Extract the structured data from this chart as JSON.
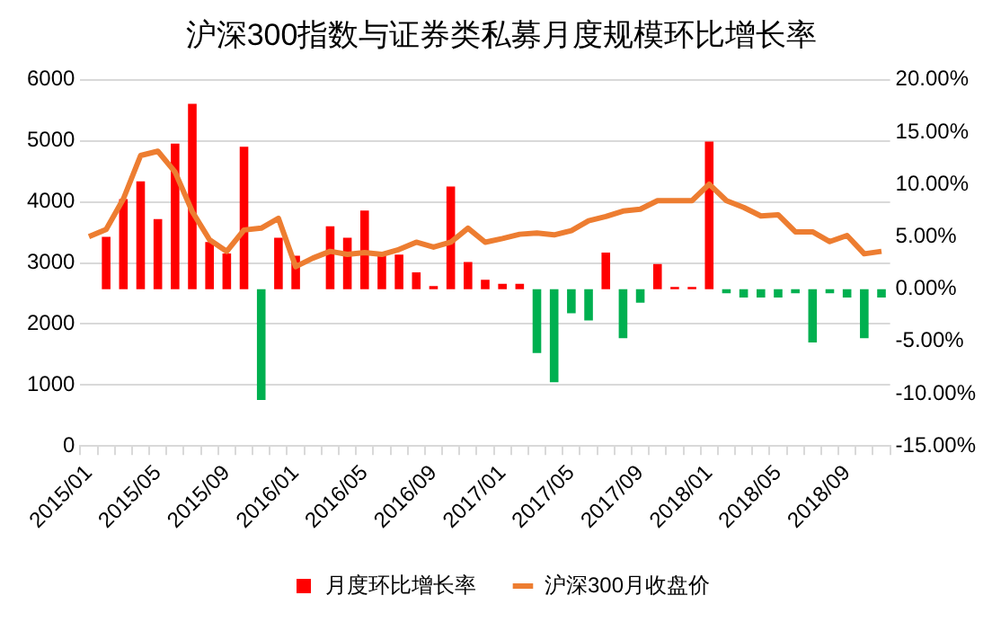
{
  "chart_data": {
    "type": "bar",
    "title": "沪深300指数与证券类私募月度规模环比增长率",
    "categories": [
      "2015/01",
      null,
      null,
      null,
      "2015/05",
      null,
      null,
      null,
      "2015/09",
      null,
      null,
      null,
      "2016/01",
      null,
      null,
      null,
      "2016/05",
      null,
      null,
      null,
      "2016/09",
      null,
      null,
      null,
      "2017/01",
      null,
      null,
      null,
      "2017/05",
      null,
      null,
      null,
      "2017/09",
      null,
      null,
      null,
      "2018/01",
      null,
      null,
      null,
      "2018/05",
      null,
      null,
      null,
      "2018/09",
      null,
      null
    ],
    "series": [
      {
        "name": "月度环比增长率",
        "axis": "y2",
        "color": "#ff0000",
        "colors": [
          "#ff0000",
          "#ff0000",
          "#ff0000",
          "#ff0000",
          "#ff0000",
          "#ff0000",
          "#ff0000",
          "#ff0000",
          "#ff0000",
          "#ff0000",
          "#00b050",
          "#ff0000",
          "#ff0000",
          "#ff0000",
          "#ff0000",
          "#ff0000",
          "#ff0000",
          "#ff0000",
          "#ff0000",
          "#ff0000",
          "#ff0000",
          "#ff0000",
          "#ff0000",
          "#ff0000",
          "#ff0000",
          "#ff0000",
          "#00b050",
          "#00b050",
          "#00b050",
          "#00b050",
          "#ff0000",
          "#00b050",
          "#00b050",
          "#ff0000",
          "#ff0000",
          "#ff0000",
          "#ff0000",
          "#00b050",
          "#00b050",
          "#00b050",
          "#00b050",
          "#00b050",
          "#00b050",
          "#00b050",
          "#00b050",
          "#00b050",
          "#00b050"
        ],
        "values": [
          null,
          5.0,
          8.6,
          10.3,
          6.7,
          13.9,
          17.7,
          4.5,
          3.4,
          13.6,
          -10.6,
          4.9,
          3.2,
          null,
          6.0,
          4.9,
          7.5,
          3.3,
          3.3,
          1.6,
          0.3,
          9.8,
          2.6,
          0.9,
          0.5,
          0.5,
          -6.1,
          -8.9,
          -2.3,
          -3.0,
          3.5,
          -4.7,
          -1.3,
          2.4,
          0.2,
          0.2,
          14.1,
          -0.4,
          -0.8,
          -0.8,
          -0.8,
          -0.4,
          -5.1,
          -0.4,
          -0.8,
          -4.7,
          -0.8
        ]
      },
      {
        "name": "沪深300月收盘价",
        "type": "line",
        "axis": "y",
        "color": "#ed7d31",
        "values": [
          3430,
          3550,
          4050,
          4760,
          4830,
          4490,
          3840,
          3380,
          3190,
          3540,
          3570,
          3730,
          2940,
          3080,
          3190,
          3140,
          3170,
          3140,
          3220,
          3340,
          3260,
          3340,
          3570,
          3340,
          3400,
          3470,
          3490,
          3460,
          3530,
          3690,
          3760,
          3850,
          3880,
          4020,
          4020,
          4020,
          4290,
          4020,
          3910,
          3770,
          3790,
          3510,
          3510,
          3350,
          3450,
          3150,
          3190
        ]
      }
    ],
    "ylim": [
      0,
      6000
    ],
    "yticks": [
      0,
      1000,
      2000,
      3000,
      4000,
      5000,
      6000
    ],
    "y2lim": [
      -15,
      20
    ],
    "y2ticks": [
      {
        "value": -15,
        "label": "-15.00%"
      },
      {
        "value": -10,
        "label": "-10.00%"
      },
      {
        "value": -5,
        "label": "-5.00%"
      },
      {
        "value": 0,
        "label": "0.00%"
      },
      {
        "value": 5,
        "label": "5.00%"
      },
      {
        "value": 10,
        "label": "10.00%"
      },
      {
        "value": 15,
        "label": "15.00%"
      },
      {
        "value": 20,
        "label": "20.00%"
      }
    ],
    "grid": "y",
    "legend": "bottom",
    "marker": "none",
    "line_style": "solid"
  }
}
